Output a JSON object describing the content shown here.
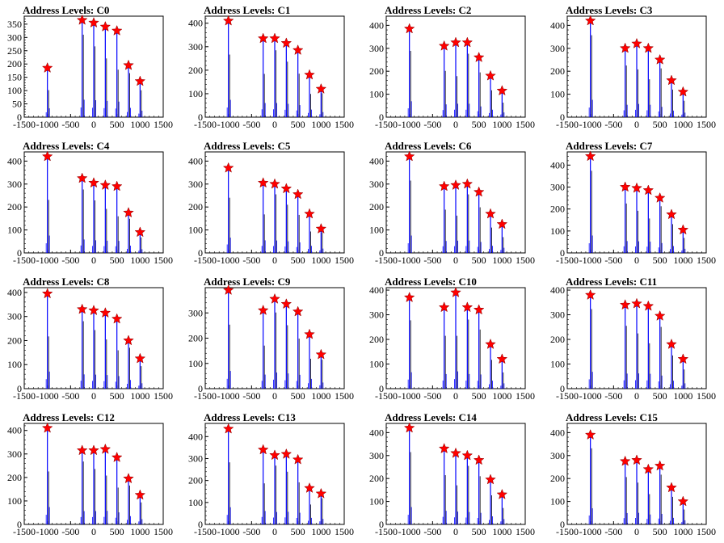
{
  "layout_desc": "4x4 grid of histogram panels",
  "colors": {
    "hist": "#0000ff",
    "hist_overlay": "#000000",
    "marker": "#ff0000",
    "axis": "#000000"
  },
  "x_ticks": [
    -1500,
    -1000,
    -500,
    0,
    500,
    1000,
    1500
  ],
  "x_tick_labels": [
    "-1500",
    "-1000",
    "-500",
    "0",
    "500",
    "1000",
    "1500"
  ],
  "chart_data": [
    {
      "type": "histogram",
      "title": "Address Levels: C0",
      "xlim": [
        -1500,
        1500
      ],
      "ylim": [
        0,
        380
      ],
      "yticks": [
        0,
        50,
        100,
        150,
        200,
        250,
        300,
        350
      ],
      "peaks": [
        {
          "x": -1000,
          "y": 185
        },
        {
          "x": -250,
          "y": 365
        },
        {
          "x": 0,
          "y": 355
        },
        {
          "x": 250,
          "y": 340
        },
        {
          "x": 500,
          "y": 325
        },
        {
          "x": 750,
          "y": 195
        },
        {
          "x": 1000,
          "y": 135
        }
      ]
    },
    {
      "type": "histogram",
      "title": "Address Levels: C1",
      "xlim": [
        -1500,
        1500
      ],
      "ylim": [
        0,
        430
      ],
      "yticks": [
        0,
        100,
        200,
        300,
        400
      ],
      "peaks": [
        {
          "x": -1000,
          "y": 410
        },
        {
          "x": -250,
          "y": 335
        },
        {
          "x": 0,
          "y": 335
        },
        {
          "x": 250,
          "y": 315
        },
        {
          "x": 500,
          "y": 285
        },
        {
          "x": 750,
          "y": 180
        },
        {
          "x": 1000,
          "y": 120
        }
      ]
    },
    {
      "type": "histogram",
      "title": "Address Levels: C2",
      "xlim": [
        -1500,
        1500
      ],
      "ylim": [
        0,
        440
      ],
      "yticks": [
        0,
        100,
        200,
        300,
        400
      ],
      "peaks": [
        {
          "x": -1000,
          "y": 385
        },
        {
          "x": -250,
          "y": 310
        },
        {
          "x": 0,
          "y": 325
        },
        {
          "x": 250,
          "y": 325
        },
        {
          "x": 500,
          "y": 260
        },
        {
          "x": 750,
          "y": 180
        },
        {
          "x": 1000,
          "y": 115
        }
      ]
    },
    {
      "type": "histogram",
      "title": "Address Levels: C3",
      "xlim": [
        -1500,
        1500
      ],
      "ylim": [
        0,
        440
      ],
      "yticks": [
        0,
        100,
        200,
        300,
        400
      ],
      "peaks": [
        {
          "x": -1000,
          "y": 420
        },
        {
          "x": -250,
          "y": 300
        },
        {
          "x": 0,
          "y": 320
        },
        {
          "x": 250,
          "y": 300
        },
        {
          "x": 500,
          "y": 250
        },
        {
          "x": 750,
          "y": 160
        },
        {
          "x": 1000,
          "y": 110
        }
      ]
    },
    {
      "type": "histogram",
      "title": "Address Levels: C4",
      "xlim": [
        -1500,
        1500
      ],
      "ylim": [
        0,
        440
      ],
      "yticks": [
        0,
        100,
        200,
        300,
        400
      ],
      "peaks": [
        {
          "x": -1000,
          "y": 420
        },
        {
          "x": -250,
          "y": 325
        },
        {
          "x": 0,
          "y": 305
        },
        {
          "x": 250,
          "y": 295
        },
        {
          "x": 500,
          "y": 290
        },
        {
          "x": 750,
          "y": 175
        },
        {
          "x": 1000,
          "y": 90
        }
      ]
    },
    {
      "type": "histogram",
      "title": "Address Levels: C5",
      "xlim": [
        -1500,
        1500
      ],
      "ylim": [
        0,
        440
      ],
      "yticks": [
        0,
        100,
        200,
        300,
        400
      ],
      "peaks": [
        {
          "x": -1000,
          "y": 370
        },
        {
          "x": -250,
          "y": 305
        },
        {
          "x": 0,
          "y": 300
        },
        {
          "x": 250,
          "y": 280
        },
        {
          "x": 500,
          "y": 255
        },
        {
          "x": 750,
          "y": 170
        },
        {
          "x": 1000,
          "y": 105
        }
      ]
    },
    {
      "type": "histogram",
      "title": "Address Levels: C6",
      "xlim": [
        -1500,
        1500
      ],
      "ylim": [
        0,
        440
      ],
      "yticks": [
        0,
        100,
        200,
        300,
        400
      ],
      "peaks": [
        {
          "x": -1000,
          "y": 420
        },
        {
          "x": -250,
          "y": 290
        },
        {
          "x": 0,
          "y": 295
        },
        {
          "x": 250,
          "y": 300
        },
        {
          "x": 500,
          "y": 265
        },
        {
          "x": 750,
          "y": 170
        },
        {
          "x": 1000,
          "y": 125
        }
      ]
    },
    {
      "type": "histogram",
      "title": "Address Levels: C7",
      "xlim": [
        -1500,
        1500
      ],
      "ylim": [
        0,
        460
      ],
      "yticks": [
        0,
        100,
        200,
        300,
        400
      ],
      "peaks": [
        {
          "x": -1000,
          "y": 440
        },
        {
          "x": -250,
          "y": 300
        },
        {
          "x": 0,
          "y": 295
        },
        {
          "x": 250,
          "y": 285
        },
        {
          "x": 500,
          "y": 250
        },
        {
          "x": 750,
          "y": 175
        },
        {
          "x": 1000,
          "y": 105
        }
      ]
    },
    {
      "type": "histogram",
      "title": "Address Levels: C8",
      "xlim": [
        -1500,
        1500
      ],
      "ylim": [
        0,
        420
      ],
      "yticks": [
        0,
        100,
        200,
        300,
        400
      ],
      "peaks": [
        {
          "x": -1000,
          "y": 395
        },
        {
          "x": -250,
          "y": 330
        },
        {
          "x": 0,
          "y": 325
        },
        {
          "x": 250,
          "y": 315
        },
        {
          "x": 500,
          "y": 290
        },
        {
          "x": 750,
          "y": 200
        },
        {
          "x": 1000,
          "y": 125
        }
      ]
    },
    {
      "type": "histogram",
      "title": "Address Levels: C9",
      "xlim": [
        -1500,
        1500
      ],
      "ylim": [
        0,
        400
      ],
      "yticks": [
        0,
        100,
        200,
        300
      ],
      "peaks": [
        {
          "x": -1000,
          "y": 390
        },
        {
          "x": -250,
          "y": 310
        },
        {
          "x": 0,
          "y": 355
        },
        {
          "x": 250,
          "y": 335
        },
        {
          "x": 500,
          "y": 305
        },
        {
          "x": 750,
          "y": 215
        },
        {
          "x": 1000,
          "y": 135
        }
      ]
    },
    {
      "type": "histogram",
      "title": "Address Levels: C10",
      "xlim": [
        -1500,
        1500
      ],
      "ylim": [
        0,
        410
      ],
      "yticks": [
        0,
        100,
        200,
        300,
        400
      ],
      "peaks": [
        {
          "x": -1000,
          "y": 370
        },
        {
          "x": -250,
          "y": 330
        },
        {
          "x": 0,
          "y": 390
        },
        {
          "x": 250,
          "y": 330
        },
        {
          "x": 500,
          "y": 320
        },
        {
          "x": 750,
          "y": 180
        },
        {
          "x": 1000,
          "y": 120
        }
      ]
    },
    {
      "type": "histogram",
      "title": "Address Levels: C11",
      "xlim": [
        -1500,
        1500
      ],
      "ylim": [
        0,
        410
      ],
      "yticks": [
        0,
        100,
        200,
        300,
        400
      ],
      "peaks": [
        {
          "x": -1000,
          "y": 380
        },
        {
          "x": -250,
          "y": 340
        },
        {
          "x": 0,
          "y": 345
        },
        {
          "x": 250,
          "y": 335
        },
        {
          "x": 500,
          "y": 295
        },
        {
          "x": 750,
          "y": 180
        },
        {
          "x": 1000,
          "y": 120
        }
      ]
    },
    {
      "type": "histogram",
      "title": "Address Levels: C12",
      "xlim": [
        -1500,
        1500
      ],
      "ylim": [
        0,
        430
      ],
      "yticks": [
        0,
        100,
        200,
        300,
        400
      ],
      "peaks": [
        {
          "x": -1000,
          "y": 410
        },
        {
          "x": -250,
          "y": 315
        },
        {
          "x": 0,
          "y": 315
        },
        {
          "x": 250,
          "y": 320
        },
        {
          "x": 500,
          "y": 285
        },
        {
          "x": 750,
          "y": 195
        },
        {
          "x": 1000,
          "y": 125
        }
      ]
    },
    {
      "type": "histogram",
      "title": "Address Levels: C13",
      "xlim": [
        -1500,
        1500
      ],
      "ylim": [
        0,
        460
      ],
      "yticks": [
        0,
        100,
        200,
        300,
        400
      ],
      "peaks": [
        {
          "x": -1000,
          "y": 435
        },
        {
          "x": -250,
          "y": 340
        },
        {
          "x": 0,
          "y": 315
        },
        {
          "x": 250,
          "y": 320
        },
        {
          "x": 500,
          "y": 295
        },
        {
          "x": 750,
          "y": 165
        },
        {
          "x": 1000,
          "y": 140
        }
      ]
    },
    {
      "type": "histogram",
      "title": "Address Levels: C14",
      "xlim": [
        -1500,
        1500
      ],
      "ylim": [
        0,
        440
      ],
      "yticks": [
        0,
        100,
        200,
        300,
        400
      ],
      "peaks": [
        {
          "x": -1000,
          "y": 420
        },
        {
          "x": -250,
          "y": 330
        },
        {
          "x": 0,
          "y": 310
        },
        {
          "x": 250,
          "y": 300
        },
        {
          "x": 500,
          "y": 280
        },
        {
          "x": 750,
          "y": 195
        },
        {
          "x": 1000,
          "y": 130
        }
      ]
    },
    {
      "type": "histogram",
      "title": "Address Levels: C15",
      "xlim": [
        -1500,
        1500
      ],
      "ylim": [
        0,
        440
      ],
      "yticks": [
        0,
        100,
        200,
        300,
        400
      ],
      "peaks": [
        {
          "x": -1000,
          "y": 390
        },
        {
          "x": -250,
          "y": 275
        },
        {
          "x": 0,
          "y": 280
        },
        {
          "x": 250,
          "y": 240
        },
        {
          "x": 500,
          "y": 255
        },
        {
          "x": 750,
          "y": 160
        },
        {
          "x": 1000,
          "y": 100
        }
      ]
    }
  ]
}
